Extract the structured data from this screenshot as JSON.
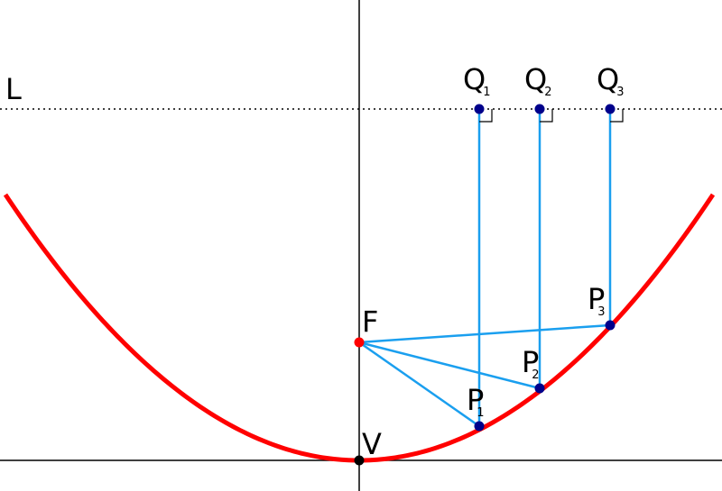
{
  "labels": {
    "directrix": "L",
    "focus": "F",
    "vertex": "V",
    "points": [
      {
        "main": "P",
        "sub": "1"
      },
      {
        "main": "P",
        "sub": "2"
      },
      {
        "main": "P",
        "sub": "3"
      }
    ],
    "projections": [
      {
        "main": "Q",
        "sub": "1"
      },
      {
        "main": "Q",
        "sub": "2"
      },
      {
        "main": "Q",
        "sub": "3"
      }
    ]
  }
}
